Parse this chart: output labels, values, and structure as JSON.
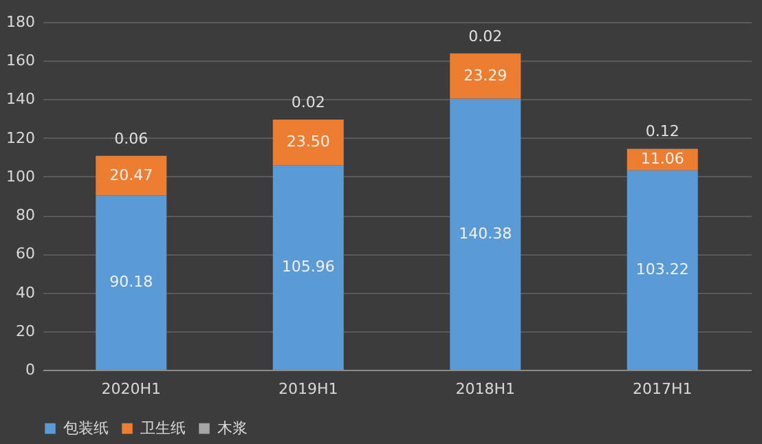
{
  "chart_data": {
    "type": "bar",
    "stacked": true,
    "categories": [
      "2020H1",
      "2019H1",
      "2018H1",
      "2017H1"
    ],
    "series": [
      {
        "name": "包装纸",
        "color": "#5b9bd5",
        "values": [
          90.18,
          105.96,
          140.38,
          103.22
        ],
        "value_labels": [
          "90.18",
          "105.96",
          "140.38",
          "103.22"
        ]
      },
      {
        "name": "卫生纸",
        "color": "#ed7d31",
        "values": [
          20.47,
          23.5,
          23.29,
          11.06
        ],
        "value_labels": [
          "20.47",
          "23.50",
          "23.29",
          "11.06"
        ]
      },
      {
        "name": "木浆",
        "color": "#a5a5a5",
        "values": [
          0.06,
          0.02,
          0.02,
          0.12
        ],
        "value_labels": [
          "0.06",
          "0.02",
          "0.02",
          "0.12"
        ]
      }
    ],
    "ylim": [
      0,
      180
    ],
    "yticks": [
      0,
      20,
      40,
      60,
      80,
      100,
      120,
      140,
      160,
      180
    ],
    "grid": "y",
    "legend": "bottom"
  }
}
